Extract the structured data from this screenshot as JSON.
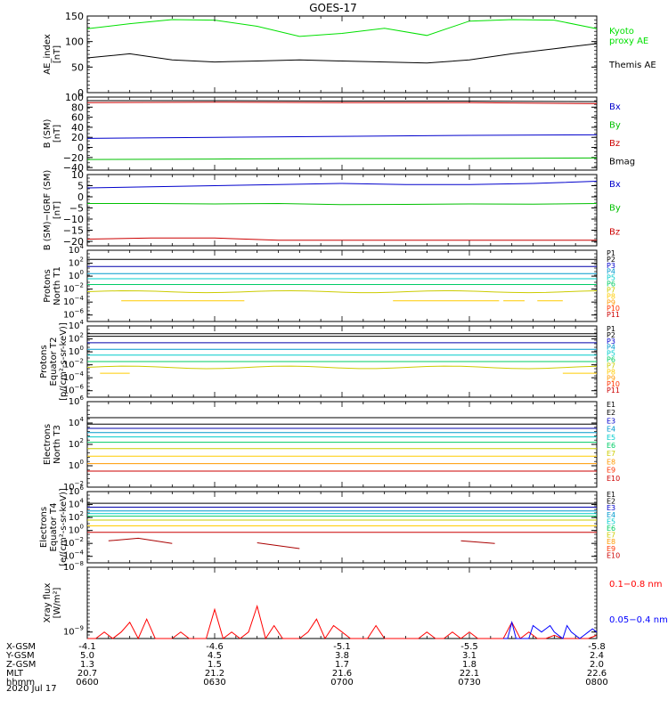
{
  "title": "GOES-17",
  "date": "2020 Jul 17",
  "x_ticks": [
    "0600",
    "0630",
    "0700",
    "0730",
    "0800"
  ],
  "orbit_rows": [
    {
      "label": "X-GSM",
      "values": [
        "-4.1",
        "-4.6",
        "-5.1",
        "-5.5",
        "-5.8"
      ]
    },
    {
      "label": "Y-GSM",
      "values": [
        "5.0",
        "4.5",
        "3.8",
        "3.1",
        "2.4"
      ]
    },
    {
      "label": "Z-GSM",
      "values": [
        "1.3",
        "1.5",
        "1.7",
        "1.8",
        "2.0"
      ]
    },
    {
      "label": "MLT",
      "values": [
        "20.7",
        "21.2",
        "21.6",
        "22.1",
        "22.6"
      ]
    },
    {
      "label": "hhmm",
      "values": [
        "0600",
        "0630",
        "0700",
        "0730",
        "0800"
      ]
    }
  ],
  "chart_data": [
    {
      "type": "line",
      "ylabel": [
        "AE_index",
        "[nT]"
      ],
      "ylim": [
        0,
        150
      ],
      "yticks": [
        {
          "v": 0,
          "t": "0"
        },
        {
          "v": 50,
          "t": "50"
        },
        {
          "v": 100,
          "t": "100"
        },
        {
          "v": 150,
          "t": "150"
        }
      ],
      "x": [
        0,
        10,
        20,
        30,
        40,
        50,
        60,
        70,
        80,
        90,
        100,
        110,
        120
      ],
      "series": [
        {
          "name": "Kyoto proxy AE",
          "legend": [
            "Kyoto",
            "proxy AE"
          ],
          "color": "#00e000",
          "values": [
            125,
            135,
            143,
            142,
            130,
            110,
            116,
            126,
            112,
            140,
            143,
            142,
            125
          ]
        },
        {
          "name": "Themis AE",
          "color": "#000000",
          "values": [
            68,
            76,
            64,
            60,
            62,
            64,
            62,
            60,
            58,
            64,
            76,
            86,
            96
          ]
        }
      ]
    },
    {
      "type": "line",
      "ylabel": [
        "B (SM)",
        "[nT]"
      ],
      "ylim": [
        -45,
        100
      ],
      "yticks": [
        {
          "v": -40,
          "t": "−40"
        },
        {
          "v": -20,
          "t": "−20"
        },
        {
          "v": 0,
          "t": "0"
        },
        {
          "v": 20,
          "t": "20"
        },
        {
          "v": 40,
          "t": "40"
        },
        {
          "v": 60,
          "t": "60"
        },
        {
          "v": 80,
          "t": "80"
        },
        {
          "v": 100,
          "t": "100"
        }
      ],
      "x": [
        0,
        30,
        60,
        90,
        120
      ],
      "series": [
        {
          "name": "Bx",
          "color": "#0000cc",
          "values": [
            18,
            20,
            22,
            24,
            25
          ]
        },
        {
          "name": "By",
          "color": "#00c000",
          "values": [
            -24,
            -23,
            -22,
            -22,
            -21
          ]
        },
        {
          "name": "Bz",
          "color": "#cc0000",
          "values": [
            89,
            90,
            89,
            89,
            87
          ]
        },
        {
          "name": "Bmag",
          "color": "#000000",
          "values": [
            93,
            93,
            92,
            92,
            91
          ]
        }
      ]
    },
    {
      "type": "line",
      "ylabel": [
        "B (SM)−IGRF (SM)",
        "[nT]"
      ],
      "ylim": [
        -22,
        10
      ],
      "yticks": [
        {
          "v": -20,
          "t": "−20"
        },
        {
          "v": -15,
          "t": "−15"
        },
        {
          "v": -10,
          "t": "−10"
        },
        {
          "v": -5,
          "t": "−5"
        },
        {
          "v": 0,
          "t": "0"
        },
        {
          "v": 5,
          "t": "5"
        },
        {
          "v": 10,
          "t": "10"
        }
      ],
      "x": [
        0,
        15,
        30,
        45,
        60,
        75,
        90,
        105,
        120
      ],
      "series": [
        {
          "name": "Bx",
          "color": "#0000cc",
          "values": [
            4,
            4.5,
            5,
            5.5,
            6,
            5.5,
            5.5,
            6,
            7
          ]
        },
        {
          "name": "By",
          "color": "#00c000",
          "values": [
            -3,
            -3,
            -3.2,
            -3,
            -3.5,
            -3.4,
            -3.2,
            -3.3,
            -3
          ]
        },
        {
          "name": "Bz",
          "color": "#cc0000",
          "values": [
            -19,
            -18.5,
            -18.5,
            -19.5,
            -19.5,
            -19.5,
            -19.5,
            -19.5,
            -19.5
          ]
        }
      ]
    },
    {
      "type": "line",
      "log": true,
      "ylabel": [
        "Protons",
        "North T1"
      ],
      "ylim_exp": [
        -7,
        4
      ],
      "yticks": [
        {
          "e": 4
        },
        {
          "e": 2
        },
        {
          "e": 0
        },
        {
          "e": -2
        },
        {
          "e": -4
        },
        {
          "e": -6
        }
      ],
      "legend": [
        {
          "t": "P1",
          "c": "#000000"
        },
        {
          "t": "P2",
          "c": "#000000"
        },
        {
          "t": "P3",
          "c": "#0000cc"
        },
        {
          "t": "P4",
          "c": "#0099cc"
        },
        {
          "t": "P5",
          "c": "#00cccc"
        },
        {
          "t": "P6",
          "c": "#00cc66"
        },
        {
          "t": "P7",
          "c": "#cccc00"
        },
        {
          "t": "P8",
          "c": "#ffcc00"
        },
        {
          "t": "P9",
          "c": "#ff9900"
        },
        {
          "t": "P10",
          "c": "#ff3300"
        },
        {
          "t": "P11",
          "c": "#cc0000"
        }
      ],
      "levels": [
        {
          "c": "#000000",
          "e": 2.6
        },
        {
          "c": "#0000aa",
          "e": 1.5
        },
        {
          "c": "#0099cc",
          "e": 0.4
        },
        {
          "c": "#00cccc",
          "e": -0.4
        },
        {
          "c": "#00cc66",
          "e": -1.3
        },
        {
          "c": "#cccc00",
          "e": -2.4,
          "wave": 0.15
        },
        {
          "c": "#ffcc00",
          "e": -3.8,
          "ranges": [
            [
              8,
              37
            ],
            [
              72,
              97
            ],
            [
              98,
              103
            ],
            [
              106,
              112
            ]
          ]
        }
      ]
    },
    {
      "type": "line",
      "log": true,
      "ylabel": [
        "Protons",
        "Equator T2",
        "[p/(cm²-s-sr-keV)]"
      ],
      "ylim_exp": [
        -7,
        4
      ],
      "yticks": [
        {
          "e": 4
        },
        {
          "e": 2
        },
        {
          "e": 0
        },
        {
          "e": -2
        },
        {
          "e": -4
        },
        {
          "e": -6
        }
      ],
      "legend": [
        {
          "t": "P1",
          "c": "#000000"
        },
        {
          "t": "P2",
          "c": "#000000"
        },
        {
          "t": "P3",
          "c": "#0000cc"
        },
        {
          "t": "P4",
          "c": "#0099cc"
        },
        {
          "t": "P5",
          "c": "#00cccc"
        },
        {
          "t": "P6",
          "c": "#00cc66"
        },
        {
          "t": "P7",
          "c": "#cccc00"
        },
        {
          "t": "P8",
          "c": "#ffcc00"
        },
        {
          "t": "P9",
          "c": "#ff9900"
        },
        {
          "t": "P10",
          "c": "#ff3300"
        },
        {
          "t": "P11",
          "c": "#cc0000"
        }
      ],
      "levels": [
        {
          "c": "#000000",
          "e": 2.8
        },
        {
          "c": "#000000",
          "e": 2.4
        },
        {
          "c": "#0000aa",
          "e": 1.4
        },
        {
          "c": "#0099cc",
          "e": 0.4
        },
        {
          "c": "#00cccc",
          "e": -0.5
        },
        {
          "c": "#00cc66",
          "e": -1.5
        },
        {
          "c": "#cccc00",
          "e": -2.4,
          "wave": 0.2
        },
        {
          "c": "#ffcc00",
          "e": -3.3,
          "ranges": [
            [
              3,
              10
            ],
            [
              112,
              120
            ]
          ]
        }
      ]
    },
    {
      "type": "line",
      "log": true,
      "ylabel": [
        "Electrons",
        "North T3"
      ],
      "ylim_exp": [
        -2,
        6
      ],
      "yticks": [
        {
          "e": 6
        },
        {
          "e": 4
        },
        {
          "e": 2
        },
        {
          "e": 0
        },
        {
          "e": -2
        }
      ],
      "legend": [
        {
          "t": "E1",
          "c": "#000000"
        },
        {
          "t": "E2",
          "c": "#000000"
        },
        {
          "t": "E3",
          "c": "#0000cc"
        },
        {
          "t": "E4",
          "c": "#0099cc"
        },
        {
          "t": "E5",
          "c": "#00cccc"
        },
        {
          "t": "E6",
          "c": "#00cc66"
        },
        {
          "t": "E7",
          "c": "#cccc00"
        },
        {
          "t": "E8",
          "c": "#ff9900"
        },
        {
          "t": "E9",
          "c": "#ff3300"
        },
        {
          "t": "E10",
          "c": "#cc0000"
        }
      ],
      "levels": [
        {
          "c": "#000000",
          "e": 4.5
        },
        {
          "c": "#000000",
          "e": 3.9
        },
        {
          "c": "#0000aa",
          "e": 3.5
        },
        {
          "c": "#0099cc",
          "e": 3.1
        },
        {
          "c": "#00cccc",
          "e": 2.7
        },
        {
          "c": "#00cc66",
          "e": 2.2
        },
        {
          "c": "#cccc00",
          "e": 1.6
        },
        {
          "c": "#ffcc00",
          "e": 0.9
        },
        {
          "c": "#ff9900",
          "e": 0.2
        },
        {
          "c": "#cc0000",
          "e": -0.5
        }
      ]
    },
    {
      "type": "line",
      "log": true,
      "ylabel": [
        "Electrons",
        "Equator T4",
        "[e/(cm²-s-sr-keV)]"
      ],
      "ylim_exp": [
        -5,
        6
      ],
      "yticks": [
        {
          "e": 6
        },
        {
          "e": 4
        },
        {
          "e": 2
        },
        {
          "e": 0
        },
        {
          "e": -2
        },
        {
          "e": -4
        }
      ],
      "legend": [
        {
          "t": "E1",
          "c": "#000000"
        },
        {
          "t": "E2",
          "c": "#000000"
        },
        {
          "t": "E3",
          "c": "#0000cc"
        },
        {
          "t": "E4",
          "c": "#0099cc"
        },
        {
          "t": "E5",
          "c": "#00cccc"
        },
        {
          "t": "E6",
          "c": "#00cc66"
        },
        {
          "t": "E7",
          "c": "#cccc00"
        },
        {
          "t": "E8",
          "c": "#ff9900"
        },
        {
          "t": "E9",
          "c": "#ff3300"
        },
        {
          "t": "E10",
          "c": "#cc0000"
        }
      ],
      "levels": [
        {
          "c": "#000000",
          "e": 4.2
        },
        {
          "c": "#0000aa",
          "e": 3.6
        },
        {
          "c": "#0099cc",
          "e": 3.0
        },
        {
          "c": "#00cccc",
          "e": 2.6
        },
        {
          "c": "#00cc66",
          "e": 2.2
        },
        {
          "c": "#cccc00",
          "e": 1.6
        },
        {
          "c": "#ffcc00",
          "e": 0.7
        },
        {
          "c": "#cc0000",
          "e": -0.3
        }
      ],
      "segments": [
        {
          "c": "#aa0000",
          "pts": [
            [
              5,
              -1.6
            ],
            [
              12,
              -1.2
            ],
            [
              20,
              -2.0
            ]
          ]
        },
        {
          "c": "#aa0000",
          "pts": [
            [
              40,
              -1.9
            ],
            [
              50,
              -2.8
            ]
          ]
        },
        {
          "c": "#aa0000",
          "pts": [
            [
              88,
              -1.6
            ],
            [
              96,
              -2.0
            ]
          ]
        }
      ]
    },
    {
      "type": "line",
      "log": true,
      "ylabel": [
        "Xray flux",
        "[W/m²]"
      ],
      "ylim_exp": [
        -9.1,
        -8
      ],
      "yticks": [
        {
          "e": -8
        },
        {
          "e": -9
        }
      ],
      "series": [
        {
          "name": "0.1−0.8 nm",
          "color": "#ff0000",
          "x": [
            0,
            2,
            4,
            6,
            8,
            10,
            12,
            14,
            16,
            18,
            20,
            22,
            24,
            26,
            28,
            30,
            32,
            34,
            36,
            38,
            40,
            42,
            44,
            46,
            48,
            50,
            52,
            54,
            56,
            58,
            60,
            62,
            64,
            66,
            68,
            70,
            72,
            74,
            76,
            78,
            80,
            82,
            84,
            86,
            88,
            90,
            92,
            94,
            96,
            98,
            100,
            102,
            104,
            106,
            108,
            110,
            112,
            114,
            116,
            118,
            120
          ],
          "values": [
            -9.1,
            -9.1,
            -9.0,
            -9.1,
            -9.0,
            -8.85,
            -9.1,
            -8.8,
            -9.1,
            -9.1,
            -9.1,
            -9.0,
            -9.1,
            -9.1,
            -9.1,
            -8.65,
            -9.1,
            -9.0,
            -9.1,
            -9.0,
            -8.6,
            -9.1,
            -8.9,
            -9.1,
            -9.1,
            -9.1,
            -9.0,
            -8.8,
            -9.1,
            -8.9,
            -9.0,
            -9.1,
            -9.1,
            -9.1,
            -8.9,
            -9.1,
            -9.1,
            -9.1,
            -9.1,
            -9.1,
            -9.0,
            -9.1,
            -9.1,
            -9.0,
            -9.1,
            -9.0,
            -9.1,
            -9.1,
            -9.1,
            -9.1,
            -8.85,
            -9.1,
            -9.0,
            -9.1,
            -9.1,
            -9.05,
            -9.1,
            -9.1,
            -9.1,
            -9.1,
            -9.05
          ]
        },
        {
          "name": "0.05−0.4 nm",
          "color": "#0000ff",
          "x": [
            98,
            99,
            100,
            101,
            102,
            103,
            104,
            105,
            106,
            107,
            108,
            109,
            110,
            111,
            112,
            113,
            114,
            115,
            116,
            117,
            118,
            119,
            120
          ],
          "values": [
            -9.1,
            -9.1,
            -8.85,
            -9.1,
            -9.1,
            -9.1,
            -9.1,
            -8.9,
            -8.95,
            -9.0,
            -8.95,
            -8.9,
            -9.0,
            -9.05,
            -9.1,
            -8.9,
            -9.0,
            -9.05,
            -9.1,
            -9.05,
            -9.0,
            -8.95,
            -9.0
          ]
        }
      ]
    }
  ]
}
